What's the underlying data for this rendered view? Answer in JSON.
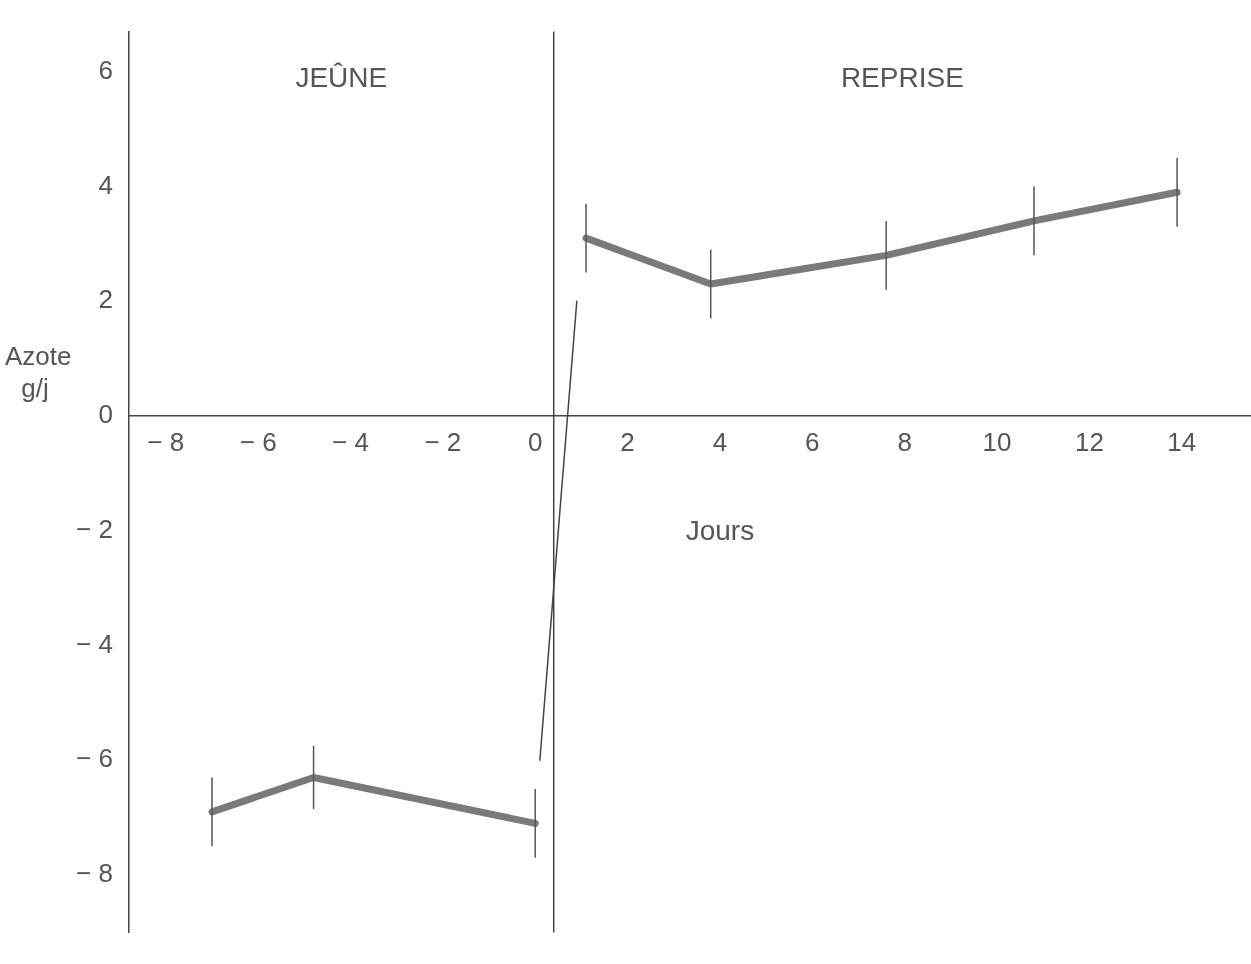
{
  "chart_data": {
    "type": "line",
    "xlabel": "Jours",
    "ylabel": "Azote g/j",
    "annotations": [
      "JEÛNE",
      "REPRISE"
    ],
    "xlim": [
      -8.8,
      15.5
    ],
    "ylim": [
      -9,
      6.7
    ],
    "xticks": [
      {
        "value": -8,
        "label": "− 8"
      },
      {
        "value": -6,
        "label": "− 6"
      },
      {
        "value": -4,
        "label": "− 4"
      },
      {
        "value": -2,
        "label": "− 2"
      },
      0,
      2,
      4,
      6,
      8,
      10,
      12,
      14
    ],
    "yticks": [
      {
        "value": -8,
        "label": "− 8"
      },
      {
        "value": -6,
        "label": "− 6"
      },
      {
        "value": -4,
        "label": "− 4"
      },
      {
        "value": -2,
        "label": "− 2"
      },
      0,
      2,
      4,
      6
    ],
    "grid": false,
    "legend": false,
    "marker": "none",
    "line_style": "solid",
    "ref_lines": [
      {
        "axis": "x",
        "value": 0.4,
        "color": "#444444"
      }
    ],
    "series": [
      {
        "color": "#7a7a7a",
        "x": [
          -7,
          -4.8,
          0
        ],
        "values": [
          -6.9,
          -6.3,
          -7.1
        ],
        "errors": [
          0.6,
          0.55,
          0.6
        ]
      },
      {
        "color": "#7a7a7a",
        "x": [
          1.1,
          3.8,
          7.6,
          10.8,
          13.9
        ],
        "values": [
          3.1,
          2.3,
          2.8,
          3.4,
          3.9
        ],
        "errors": [
          0.6,
          0.6,
          0.6,
          0.6,
          0.6
        ]
      },
      {
        "color": "#444444",
        "x": [
          0.1,
          0.9
        ],
        "values": [
          -6,
          2
        ]
      }
    ]
  }
}
